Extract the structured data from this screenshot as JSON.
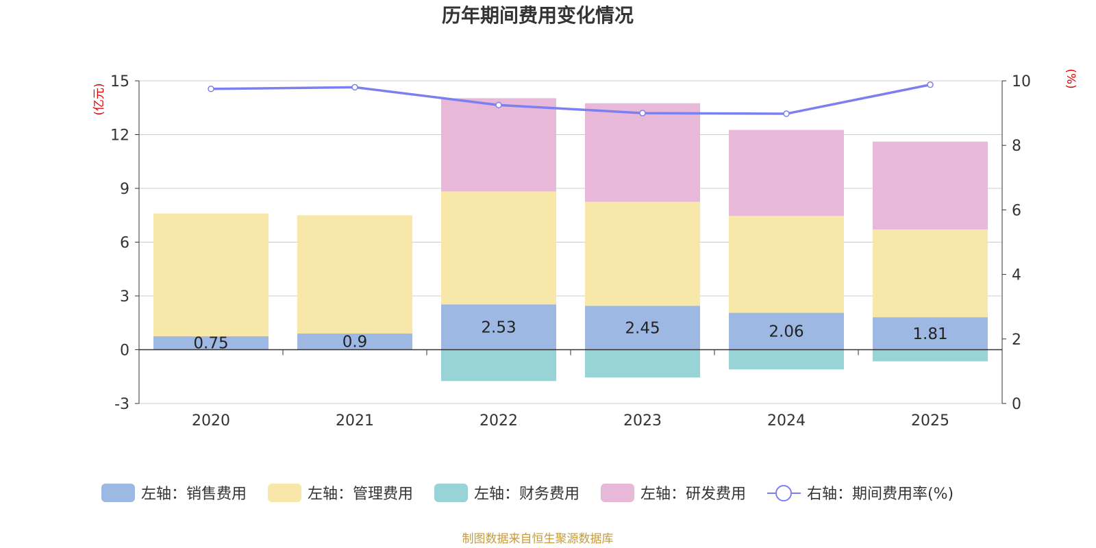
{
  "chart_data": {
    "type": "bar",
    "title": "历年期间费用变化情况",
    "categories": [
      "2020",
      "2021",
      "2022",
      "2023",
      "2024",
      "2025"
    ],
    "left_axis": {
      "unit": "(亿元)",
      "ylim": [
        -3,
        15
      ],
      "ticks": [
        -3,
        0,
        3,
        6,
        9,
        12,
        15
      ]
    },
    "right_axis": {
      "unit": "(%)",
      "ylim": [
        0,
        10
      ],
      "ticks": [
        0,
        2,
        4,
        6,
        8,
        10
      ]
    },
    "series": [
      {
        "name": "左轴：销售费用",
        "type": "bar",
        "axis": "left",
        "color": "#9db8e2",
        "values": [
          0.75,
          0.9,
          2.53,
          2.45,
          2.06,
          1.81
        ],
        "labels": [
          "0.75",
          "0.9",
          "2.53",
          "2.45",
          "2.06",
          "1.81"
        ]
      },
      {
        "name": "左轴：管理费用",
        "type": "bar",
        "axis": "left",
        "color": "#f7e7a8",
        "values": [
          6.85,
          6.6,
          6.3,
          5.8,
          5.4,
          4.9
        ]
      },
      {
        "name": "左轴：财务费用",
        "type": "bar",
        "axis": "left",
        "color": "#98d4d6",
        "values": [
          0,
          0,
          -1.75,
          -1.55,
          -1.1,
          -0.65
        ]
      },
      {
        "name": "左轴：研发费用",
        "type": "bar",
        "axis": "left",
        "color": "#e8b8d9",
        "values": [
          0,
          0,
          5.2,
          5.5,
          4.8,
          4.9
        ]
      },
      {
        "name": "右轴：期间费用率(%)",
        "type": "line",
        "axis": "right",
        "color": "#7b7ff0",
        "values": [
          9.75,
          9.8,
          9.25,
          9.0,
          8.98,
          9.88
        ]
      }
    ],
    "gridlines": true,
    "legend_position": "bottom"
  },
  "footer": {
    "source": "制图数据来自恒生聚源数据库"
  }
}
